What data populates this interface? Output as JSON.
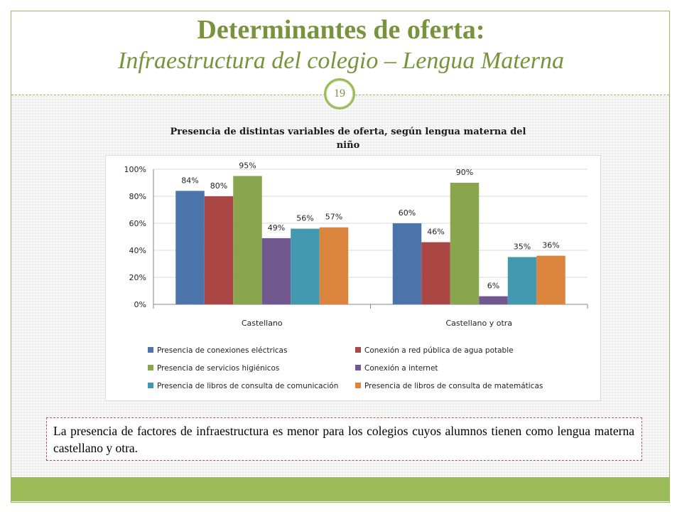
{
  "slide": {
    "title": "Determinantes de oferta:",
    "subtitle": "Infraestructura del colegio – Lengua Materna",
    "page_number": "19",
    "note": "La presencia de factores de infraestructura es menor para los colegios cuyos alumnos tienen como lengua materna castellano y otra.",
    "colors": {
      "accent": "#9bbb59",
      "title": "#77933c",
      "note_border": "#c0504d"
    }
  },
  "chart_data": {
    "type": "bar",
    "title": "Presencia de distintas variables de oferta, según lengua materna del niño",
    "xlabel": "",
    "ylabel": "",
    "categories": [
      "Castellano",
      "Castellano y otra"
    ],
    "ylim": [
      0,
      100
    ],
    "yticks": [
      "0%",
      "20%",
      "40%",
      "60%",
      "80%",
      "100%"
    ],
    "grid": true,
    "legend_position": "bottom",
    "series": [
      {
        "name": "Presencia de conexiones eléctricas",
        "color": "#4a74aa",
        "values": [
          84,
          60
        ],
        "labels": [
          "84%",
          "60%"
        ]
      },
      {
        "name": "Conexión a red pública de agua potable",
        "color": "#aa4643",
        "values": [
          80,
          46
        ],
        "labels": [
          "80%",
          "46%"
        ]
      },
      {
        "name": "Presencia de servicios higiénicos",
        "color": "#89a54e",
        "values": [
          95,
          90
        ],
        "labels": [
          "95%",
          "90%"
        ]
      },
      {
        "name": "Conexión a internet",
        "color": "#71588f",
        "values": [
          49,
          6
        ],
        "labels": [
          "49%",
          "6%"
        ]
      },
      {
        "name": "Presencia de libros de consulta de comunicación",
        "color": "#4198af",
        "values": [
          56,
          35
        ],
        "labels": [
          "56%",
          "35%"
        ]
      },
      {
        "name": "Presencia de libros de consulta de matemáticas",
        "color": "#db843d",
        "values": [
          57,
          36
        ],
        "labels": [
          "57%",
          "36%"
        ]
      }
    ]
  }
}
